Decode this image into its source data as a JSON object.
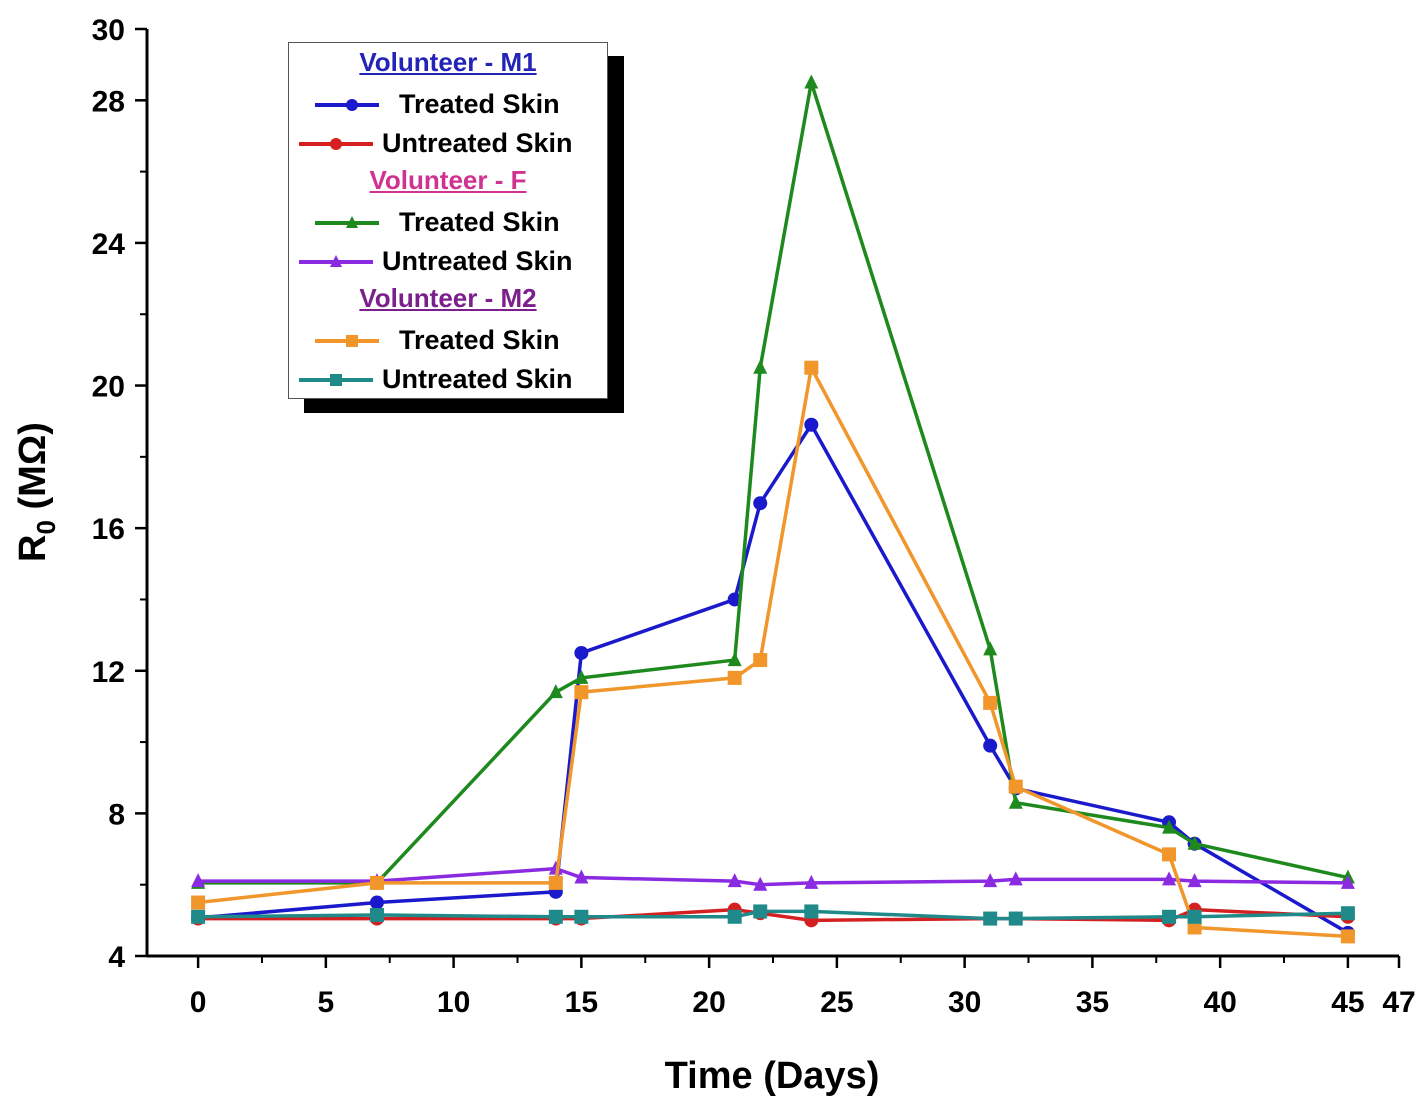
{
  "chart_data": {
    "type": "line",
    "title": "",
    "xlabel": "Time (Days)",
    "ylabel": "R",
    "ylabel_sub": "0",
    "ylabel_unit": " (MΩ)",
    "xlim": [
      -2,
      47
    ],
    "ylim": [
      4,
      30
    ],
    "xticks": [
      0,
      5,
      10,
      15,
      20,
      25,
      30,
      35,
      40,
      45,
      47
    ],
    "yticks": [
      4,
      8,
      12,
      16,
      20,
      24,
      28,
      30
    ],
    "grid": false,
    "legend_placement": "top-left",
    "x": [
      0,
      7,
      14,
      15,
      21,
      22,
      24,
      31,
      32,
      38,
      39,
      45
    ],
    "groups": [
      {
        "title": "Volunteer - M1",
        "color": "#2323b8"
      },
      {
        "title": "Volunteer - F",
        "color": "#d0338f"
      },
      {
        "title": "Volunteer - M2",
        "color": "#7b1f8c"
      }
    ],
    "series": [
      {
        "group": 0,
        "name": "Treated Skin",
        "color": "#1a1acc",
        "marker": "circle",
        "values": [
          5.07,
          5.5,
          5.8,
          12.5,
          14.0,
          16.7,
          18.9,
          9.9,
          8.7,
          7.75,
          7.15,
          4.65
        ]
      },
      {
        "group": 0,
        "name": "Untreated Skin",
        "color": "#d42020",
        "marker": "circle",
        "values": [
          5.05,
          5.05,
          5.05,
          5.05,
          5.3,
          5.2,
          5.0,
          5.05,
          5.05,
          5.0,
          5.3,
          5.1
        ]
      },
      {
        "group": 1,
        "name": "Treated Skin",
        "color": "#1e8a1e",
        "marker": "triangle",
        "values": [
          6.05,
          6.05,
          11.4,
          11.8,
          12.3,
          20.5,
          28.5,
          12.6,
          8.3,
          7.6,
          7.15,
          6.2
        ]
      },
      {
        "group": 1,
        "name": "Untreated Skin",
        "color": "#8a2be2",
        "marker": "triangle",
        "values": [
          6.1,
          6.1,
          6.45,
          6.2,
          6.1,
          6.0,
          6.05,
          6.1,
          6.15,
          6.15,
          6.1,
          6.05
        ]
      },
      {
        "group": 2,
        "name": "Treated Skin",
        "color": "#f0962a",
        "marker": "square",
        "values": [
          5.5,
          6.05,
          6.05,
          11.4,
          11.8,
          12.3,
          20.5,
          11.1,
          8.75,
          6.85,
          4.8,
          4.55
        ]
      },
      {
        "group": 2,
        "name": "Untreated Skin",
        "color": "#208a8a",
        "marker": "square",
        "values": [
          5.1,
          5.15,
          5.1,
          5.1,
          5.1,
          5.25,
          5.25,
          5.05,
          5.05,
          5.1,
          5.1,
          5.2
        ]
      }
    ]
  }
}
